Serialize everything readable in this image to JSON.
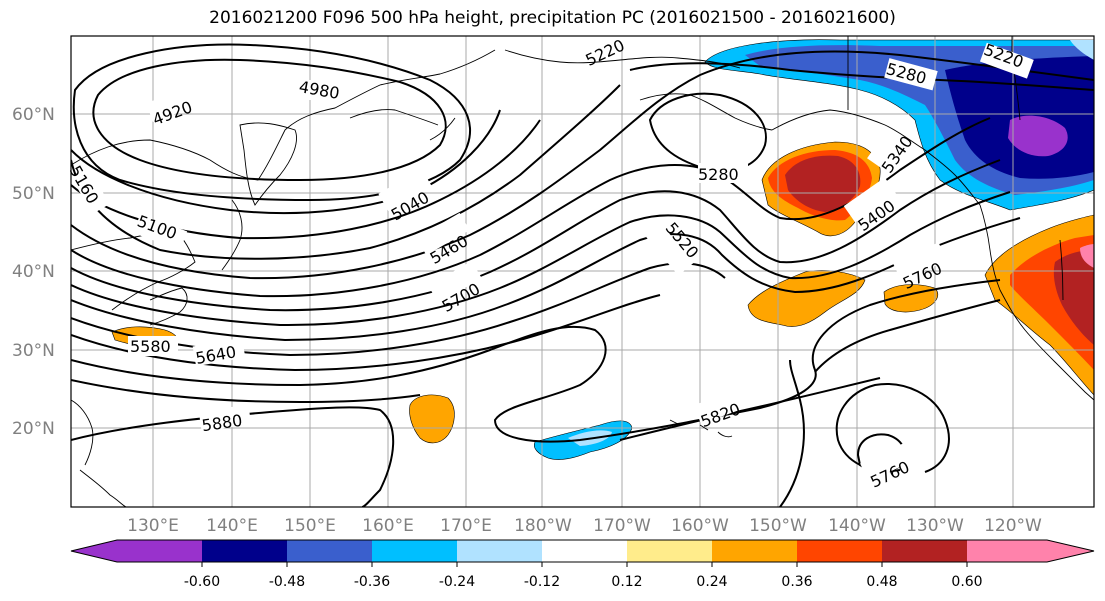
{
  "title": "2016021200 F096 500 hPa height, precipitation PC (2016021500 - 2016021600)",
  "map": {
    "latitude_labels": [
      "60°N",
      "50°N",
      "40°N",
      "30°N",
      "20°N"
    ],
    "longitude_labels": [
      "130°E",
      "140°E",
      "150°E",
      "160°E",
      "170°E",
      "180°W",
      "170°W",
      "160°W",
      "150°W",
      "140°W",
      "130°W",
      "120°W"
    ],
    "contour_labels": [
      "4920",
      "4980",
      "5040",
      "5100",
      "5160",
      "5220",
      "5220",
      "5280",
      "5280",
      "5340",
      "5400",
      "5460",
      "5520",
      "5580",
      "5640",
      "5700",
      "5760",
      "5760",
      "5820",
      "5880"
    ]
  },
  "colorbar": {
    "tick_labels": [
      "-0.60",
      "-0.48",
      "-0.36",
      "-0.24",
      "-0.12",
      "0.12",
      "0.24",
      "0.36",
      "0.48",
      "0.60"
    ],
    "colors": [
      "#9932cc",
      "#00008b",
      "#3a5fcd",
      "#00bfff",
      "#b0e2ff",
      "#ffffff",
      "#ffec8b",
      "#ffa500",
      "#ff4500",
      "#b22222",
      "#ff82ab"
    ]
  }
}
